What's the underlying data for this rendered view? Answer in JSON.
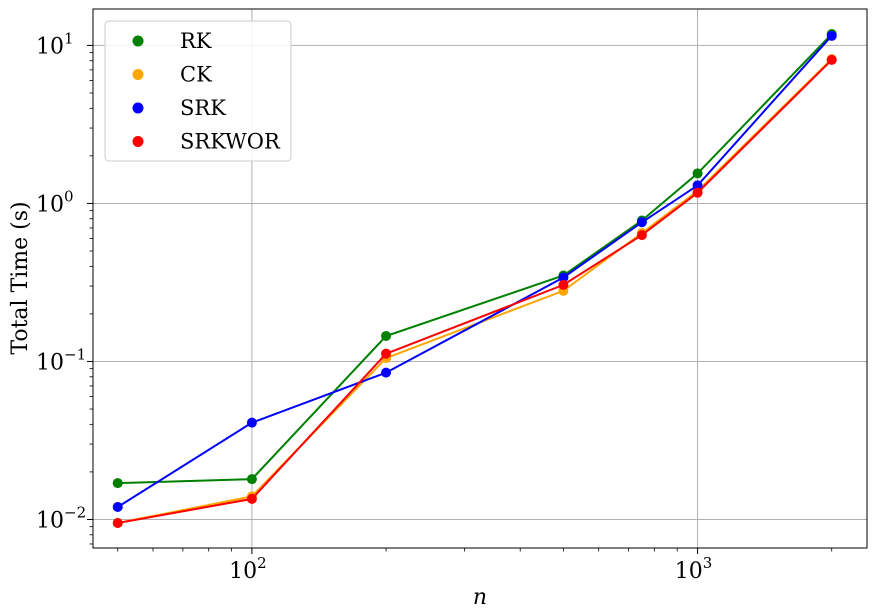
{
  "chart_data": {
    "type": "line",
    "xscale": "log",
    "yscale": "log",
    "xlabel": "n",
    "ylabel": "Total Time (s)",
    "xlim": [
      44,
      2400
    ],
    "ylim": [
      0.0066,
      17
    ],
    "grid": true,
    "legend_position": "top-left",
    "x_ticks": [
      {
        "base": "10",
        "exp": "2",
        "value": 100
      },
      {
        "base": "10",
        "exp": "3",
        "value": 1000
      }
    ],
    "y_ticks": [
      {
        "base": "10",
        "exp": "−2",
        "value": 0.01
      },
      {
        "base": "10",
        "exp": "−1",
        "value": 0.1
      },
      {
        "base": "10",
        "exp": "0",
        "value": 1
      },
      {
        "base": "10",
        "exp": "1",
        "value": 10
      }
    ],
    "x": [
      50,
      100,
      200,
      500,
      750,
      1000,
      2000
    ],
    "series": [
      {
        "name": "RK",
        "color": "#008000",
        "values": [
          0.017,
          0.018,
          0.145,
          0.35,
          0.78,
          1.55,
          11.8
        ]
      },
      {
        "name": "CK",
        "color": "#ffa500",
        "values": [
          0.0095,
          0.014,
          0.105,
          0.28,
          0.65,
          1.2,
          8.2
        ]
      },
      {
        "name": "SRK",
        "color": "#0000ff",
        "values": [
          0.012,
          0.041,
          0.085,
          0.34,
          0.76,
          1.3,
          11.5
        ]
      },
      {
        "name": "SRKWOR",
        "color": "#ff0000",
        "values": [
          0.0095,
          0.0135,
          0.112,
          0.305,
          0.63,
          1.17,
          8.1
        ]
      }
    ]
  }
}
